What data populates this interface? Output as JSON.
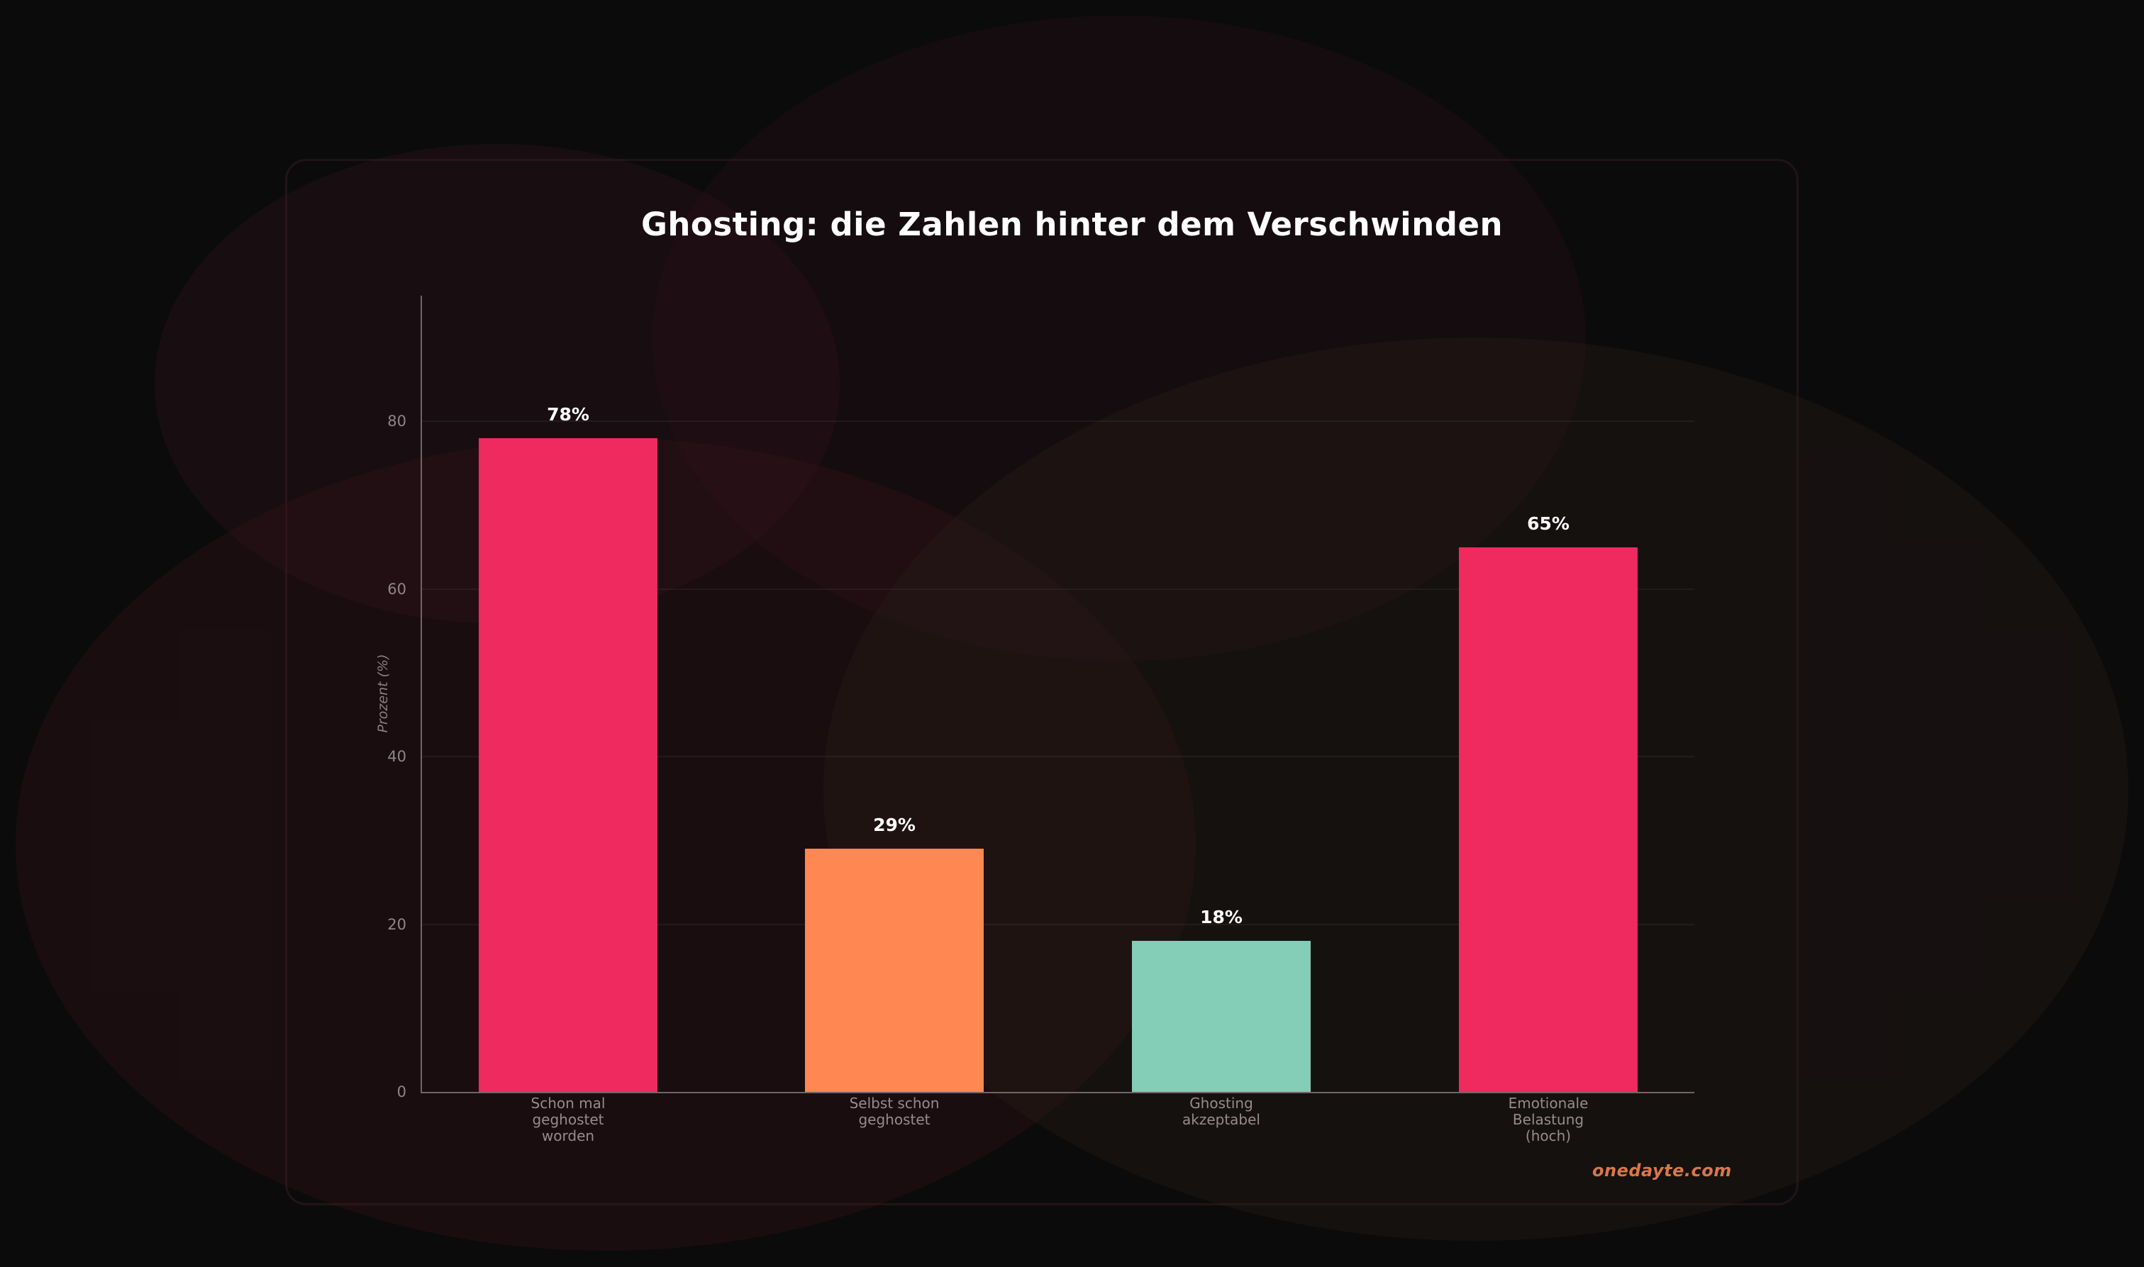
{
  "title": "Ghosting: die Zahlen hinter dem Verschwinden",
  "brand": "onedayte.com",
  "colors": {
    "background": "#0b0b0b",
    "bar_pink": "#ee2a5f",
    "bar_orange": "#ff8752",
    "bar_teal": "#84cdb7",
    "brand_text": "#d9774a",
    "axis": "#6f6568",
    "tick_text": "#8f8588"
  },
  "chart_data": {
    "type": "bar",
    "title": "Ghosting: die Zahlen hinter dem Verschwinden",
    "xlabel": "",
    "ylabel": "Prozent (%)",
    "ylim": [
      0,
      95
    ],
    "yticks": [
      0,
      20,
      40,
      60,
      80
    ],
    "grid": "horizontal",
    "legend": "none",
    "categories": [
      "Schon mal\ngeghostet\nworden",
      "Selbst schon\ngeghostet",
      "Ghosting\nakzeptabel",
      "Emotionale\nBelastung\n(hoch)"
    ],
    "values": [
      78,
      29,
      18,
      65
    ],
    "value_labels": [
      "78%",
      "29%",
      "18%",
      "65%"
    ],
    "bar_colors": [
      "#ee2a5f",
      "#ff8752",
      "#84cdb7",
      "#ee2a5f"
    ]
  }
}
